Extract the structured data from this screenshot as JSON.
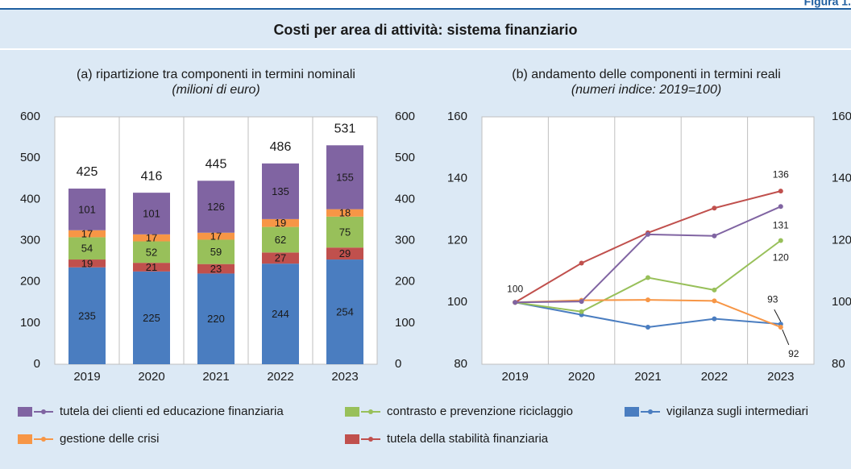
{
  "figure_label": "Figura 1.",
  "title": "Costi per area di attività: sistema finanziario",
  "legend_order": [
    4,
    2,
    0,
    3,
    1
  ],
  "chart_data": [
    {
      "type": "stacked_bar",
      "title": "(a) ripartizione tra componenti in termini nominali",
      "subtitle": "(milioni di euro)",
      "categories": [
        "2019",
        "2020",
        "2021",
        "2022",
        "2023"
      ],
      "series": [
        {
          "name": "vigilanza sugli intermediari",
          "color": "#4a7dc0",
          "values": [
            235,
            225,
            220,
            244,
            254
          ]
        },
        {
          "name": "tutela della stabilità finanziaria",
          "color": "#c0504d",
          "values": [
            19,
            21,
            23,
            27,
            29
          ]
        },
        {
          "name": "contrasto e prevenzione riciclaggio",
          "color": "#98c05a",
          "values": [
            54,
            52,
            59,
            62,
            75
          ]
        },
        {
          "name": "gestione delle crisi",
          "color": "#f79646",
          "values": [
            17,
            17,
            17,
            19,
            18
          ]
        },
        {
          "name": "tutela dei clienti ed educazione finanziaria",
          "color": "#8064a2",
          "values": [
            101,
            101,
            126,
            135,
            155
          ]
        }
      ],
      "totals": [
        425,
        416,
        445,
        486,
        531
      ],
      "ylim": [
        0,
        600
      ],
      "yticks": [
        0,
        100,
        200,
        300,
        400,
        500,
        600
      ],
      "y2lim": [
        0,
        600
      ],
      "y2ticks": [
        0,
        100,
        200,
        300,
        400,
        500,
        600
      ]
    },
    {
      "type": "line",
      "title": "(b) andamento delle componenti in termini reali",
      "subtitle": "(numeri indice: 2019=100)",
      "categories": [
        "2019",
        "2020",
        "2021",
        "2022",
        "2023"
      ],
      "series": [
        {
          "color": "#4a7dc0",
          "values": [
            100,
            96,
            92,
            94.7,
            93
          ],
          "data_labels": [
            4
          ]
        },
        {
          "color": "#c0504d",
          "values": [
            100,
            112.7,
            122.5,
            130.5,
            136
          ],
          "data_labels": [
            0,
            4
          ]
        },
        {
          "color": "#98c05a",
          "values": [
            100,
            97,
            108,
            104,
            120
          ],
          "data_labels": [
            4
          ]
        },
        {
          "color": "#f79646",
          "values": [
            100,
            100.7,
            100.8,
            100.5,
            92
          ],
          "data_labels": [
            4
          ]
        },
        {
          "color": "#8064a2",
          "values": [
            100,
            100.3,
            122,
            121.5,
            131
          ],
          "data_labels": [
            4
          ]
        }
      ],
      "ylim": [
        80,
        160
      ],
      "yticks": [
        80,
        100,
        120,
        140,
        160
      ],
      "y2lim": [
        80,
        160
      ],
      "y2ticks": [
        80,
        100,
        120,
        140,
        160
      ]
    }
  ]
}
